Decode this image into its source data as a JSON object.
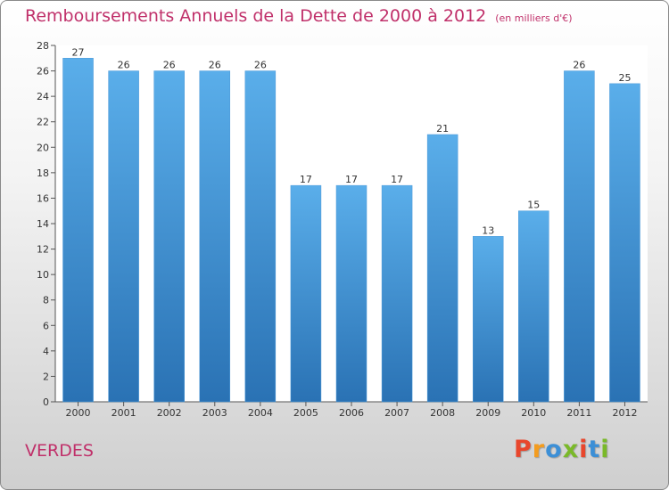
{
  "chart_data": {
    "type": "bar",
    "title": "Remboursements Annuels de la Dette de 2000 à 2012",
    "subtitle": "(en milliers d'€)",
    "categories": [
      "2000",
      "2001",
      "2002",
      "2003",
      "2004",
      "2005",
      "2006",
      "2007",
      "2008",
      "2009",
      "2010",
      "2011",
      "2012"
    ],
    "values": [
      27,
      26,
      26,
      26,
      26,
      17,
      17,
      17,
      21,
      13,
      15,
      26,
      25
    ],
    "data_labels": [
      "27",
      "26",
      "26",
      "26",
      "26",
      "17",
      "17",
      "17",
      "21",
      "13",
      "15",
      "26",
      "25"
    ],
    "ylim": [
      0,
      28
    ],
    "yticks": [
      0,
      2,
      4,
      6,
      8,
      10,
      12,
      14,
      16,
      18,
      20,
      22,
      24,
      26,
      28
    ],
    "xlabel": "",
    "ylabel": "",
    "grid": false,
    "legend": "none",
    "bar_color_top": "#5aaeea",
    "bar_color_bottom": "#2a72b4"
  },
  "footer": {
    "place_name": "VERDES",
    "logo": "Proxiti"
  },
  "colors": {
    "title": "#c0306a",
    "logo_letters": [
      "#e8462c",
      "#f39c1f",
      "#3c8fd6",
      "#7ab929",
      "#e8462c",
      "#3c8fd6",
      "#7ab929"
    ]
  }
}
